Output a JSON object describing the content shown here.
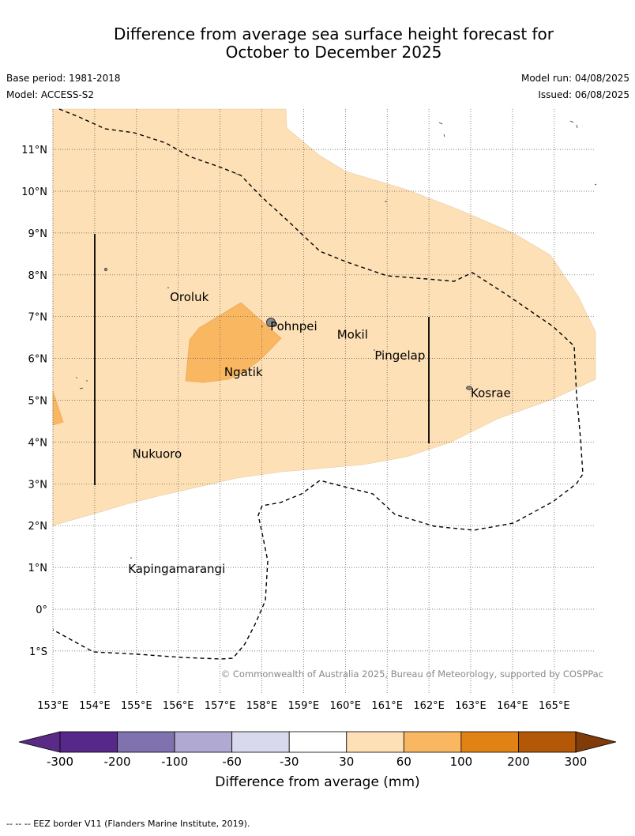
{
  "title_line1": "Difference from average sea surface height forecast for",
  "title_line2": "October to December 2025",
  "base_period": "Base period: 1981-2018",
  "model": "Model: ACCESS-S2",
  "model_run": "Model run: 04/08/2025",
  "issued": "Issued: 06/08/2025",
  "lon_labels": [
    "153°E",
    "154°E",
    "155°E",
    "156°E",
    "157°E",
    "158°E",
    "159°E",
    "160°E",
    "161°E",
    "162°E",
    "163°E",
    "164°E",
    "165°E"
  ],
  "lat_labels": [
    "11°N",
    "10°N",
    "9°N",
    "8°N",
    "7°N",
    "6°N",
    "5°N",
    "4°N",
    "3°N",
    "2°N",
    "1°N",
    "0°",
    "1°S"
  ],
  "places": [
    {
      "name": "Oroluk",
      "lon": 155.8,
      "lat": 7.6
    },
    {
      "name": "Pohnpei",
      "lon": 158.2,
      "lat": 6.9
    },
    {
      "name": "Mokil",
      "lon": 159.8,
      "lat": 6.7
    },
    {
      "name": "Pingelap",
      "lon": 160.7,
      "lat": 6.2
    },
    {
      "name": "Ngatik",
      "lon": 157.1,
      "lat": 5.8
    },
    {
      "name": "Kosrae",
      "lon": 163.0,
      "lat": 5.3
    },
    {
      "name": "Nukuoro",
      "lon": 154.9,
      "lat": 3.85
    },
    {
      "name": "Kapingamarangi",
      "lon": 154.8,
      "lat": 1.1
    }
  ],
  "copyright": "© Commonwealth of Australia 2025, Bureau of Meteorology, supported by COSPPac",
  "colorbar": {
    "label": "Difference from average (mm)",
    "ticks": [
      "-300",
      "-200",
      "-100",
      "-60",
      "-30",
      "30",
      "60",
      "100",
      "200",
      "300"
    ],
    "colors": [
      "#5b2a86",
      "#55288a",
      "#7f72ae",
      "#b0a9d2",
      "#d8d9ed",
      "#ffffff",
      "#fde0b5",
      "#fab762",
      "#e08214",
      "#b35806",
      "#7f3b08"
    ]
  },
  "footer": "--  --  -- EEZ border V11 (Flanders Marine Institute, 2019)."
}
